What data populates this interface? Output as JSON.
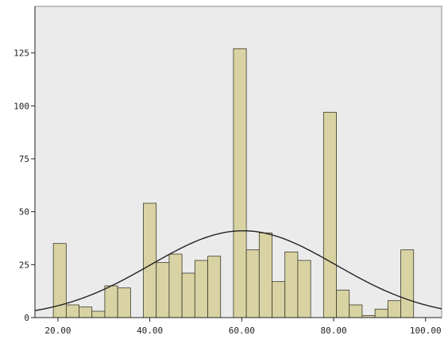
{
  "chart_data": {
    "type": "bar",
    "subtype": "histogram-with-normal-curve",
    "title": "",
    "xlabel": "",
    "ylabel": "",
    "xlim": [
      15,
      103.5
    ],
    "ylim": [
      0,
      147
    ],
    "x_ticks": [
      {
        "value": 20,
        "label": "20.00"
      },
      {
        "value": 40,
        "label": "40.00"
      },
      {
        "value": 60,
        "label": "60.00"
      },
      {
        "value": 80,
        "label": "80.00"
      },
      {
        "value": 100,
        "label": "100.00"
      }
    ],
    "y_ticks": [
      {
        "value": 0,
        "label": "0"
      },
      {
        "value": 25,
        "label": "25"
      },
      {
        "value": 50,
        "label": "50"
      },
      {
        "value": 75,
        "label": "75"
      },
      {
        "value": 100,
        "label": "100"
      },
      {
        "value": 125,
        "label": "125"
      }
    ],
    "bin_width": 2.8,
    "bins": [
      {
        "start": 19.0,
        "count": 35
      },
      {
        "start": 21.8,
        "count": 6
      },
      {
        "start": 24.6,
        "count": 5
      },
      {
        "start": 27.4,
        "count": 3
      },
      {
        "start": 30.2,
        "count": 15
      },
      {
        "start": 33.0,
        "count": 14
      },
      {
        "start": 38.6,
        "count": 54
      },
      {
        "start": 41.4,
        "count": 26
      },
      {
        "start": 44.2,
        "count": 30
      },
      {
        "start": 47.0,
        "count": 21
      },
      {
        "start": 49.8,
        "count": 27
      },
      {
        "start": 52.6,
        "count": 29
      },
      {
        "start": 55.4,
        "count": 0
      },
      {
        "start": 58.2,
        "count": 127
      },
      {
        "start": 61.0,
        "count": 32
      },
      {
        "start": 63.8,
        "count": 40
      },
      {
        "start": 66.6,
        "count": 17
      },
      {
        "start": 69.4,
        "count": 31
      },
      {
        "start": 72.2,
        "count": 27
      },
      {
        "start": 75.0,
        "count": 0
      },
      {
        "start": 77.8,
        "count": 97
      },
      {
        "start": 80.6,
        "count": 13
      },
      {
        "start": 83.4,
        "count": 6
      },
      {
        "start": 86.2,
        "count": 1
      },
      {
        "start": 89.0,
        "count": 4
      },
      {
        "start": 91.8,
        "count": 8
      },
      {
        "start": 94.6,
        "count": 32
      }
    ],
    "normal_curve": {
      "mean": 60.3,
      "peak": 41,
      "sd": 20.2
    },
    "colors": {
      "bar_fill": "#d9d3a4",
      "bar_stroke": "#3a3a2a",
      "plot_background": "#ebebeb",
      "curve": "#222222"
    },
    "grid": false,
    "legend": "none"
  }
}
